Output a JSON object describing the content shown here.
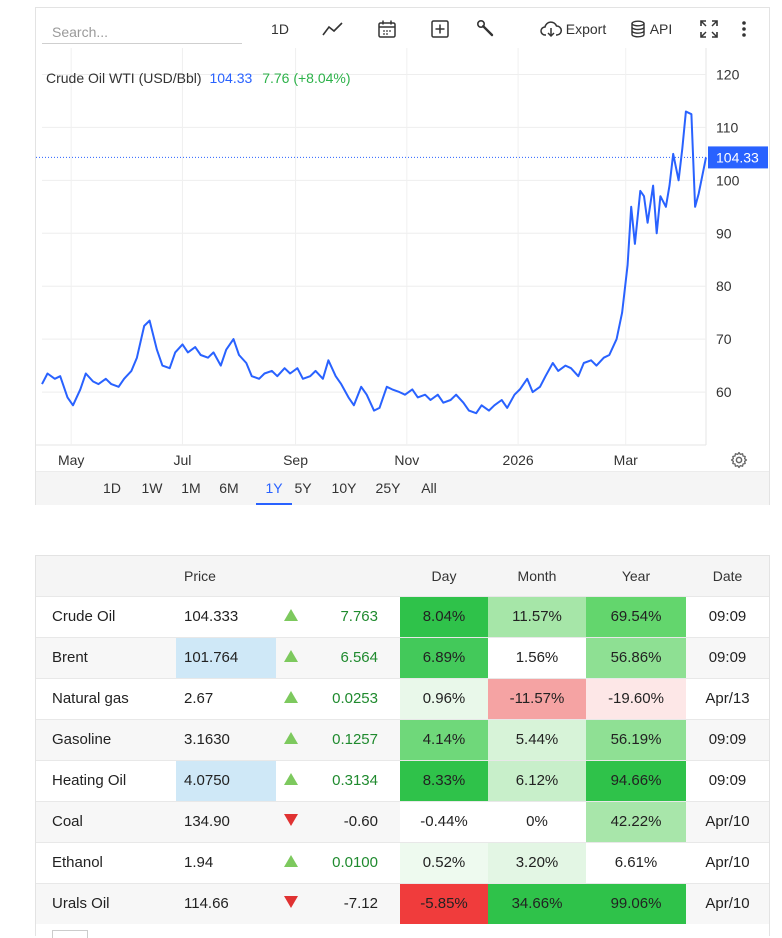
{
  "toolbar": {
    "search_placeholder": "Search...",
    "interval_label": "1D",
    "export_label": "Export",
    "api_label": "API",
    "icons": [
      "line-chart-icon",
      "calendar-icon",
      "add-compare-icon",
      "wrench-icon",
      "cloud-download-icon",
      "database-icon",
      "fullscreen-icon",
      "more-vertical-icon"
    ]
  },
  "legend": {
    "name": "Crude Oil WTI (USD/Bbl)",
    "price": "104.33",
    "change": "7.76 (+8.04%)"
  },
  "chart_data": {
    "type": "line",
    "title": "Crude Oil WTI (USD/Bbl)",
    "xlabel": "",
    "ylabel": "",
    "x_ticks": [
      "May",
      "Jul",
      "Sep",
      "Nov",
      "2026",
      "Mar"
    ],
    "y_ticks": [
      60,
      70,
      80,
      90,
      100,
      110,
      120
    ],
    "ylim": [
      50,
      125
    ],
    "grid": true,
    "current_price": 104.33,
    "current_price_label": "104.33",
    "line_color": "#2962ff",
    "x_range": [
      "2025-04-15",
      "2026-04-14"
    ],
    "series": [
      {
        "x": [
          "2025-04-15",
          "2025-04-18",
          "2025-04-22",
          "2025-04-25",
          "2025-04-29",
          "2025-05-02",
          "2025-05-06",
          "2025-05-09",
          "2025-05-13",
          "2025-05-16",
          "2025-05-20",
          "2025-05-23",
          "2025-05-27",
          "2025-05-30",
          "2025-06-03",
          "2025-06-06",
          "2025-06-10",
          "2025-06-13",
          "2025-06-17",
          "2025-06-20",
          "2025-06-24",
          "2025-06-27",
          "2025-07-01",
          "2025-07-04",
          "2025-07-08",
          "2025-07-11",
          "2025-07-15",
          "2025-07-18",
          "2025-07-22",
          "2025-07-25",
          "2025-07-29",
          "2025-08-01",
          "2025-08-05",
          "2025-08-08",
          "2025-08-12",
          "2025-08-15",
          "2025-08-19",
          "2025-08-22",
          "2025-08-26",
          "2025-08-29",
          "2025-09-02",
          "2025-09-05",
          "2025-09-09",
          "2025-09-12",
          "2025-09-16",
          "2025-09-19",
          "2025-09-23",
          "2025-09-26",
          "2025-09-30",
          "2025-10-03",
          "2025-10-07",
          "2025-10-10",
          "2025-10-14",
          "2025-10-17",
          "2025-10-21",
          "2025-10-24",
          "2025-10-28",
          "2025-10-31",
          "2025-11-04",
          "2025-11-07",
          "2025-11-11",
          "2025-11-14",
          "2025-11-18",
          "2025-11-21",
          "2025-11-25",
          "2025-11-28",
          "2025-12-02",
          "2025-12-05",
          "2025-12-09",
          "2025-12-12",
          "2025-12-16",
          "2025-12-19",
          "2025-12-23",
          "2025-12-26",
          "2025-12-30",
          "2026-01-02",
          "2026-01-06",
          "2026-01-09",
          "2026-01-13",
          "2026-01-16",
          "2026-01-20",
          "2026-01-23",
          "2026-01-27",
          "2026-01-30",
          "2026-02-03",
          "2026-02-06",
          "2026-02-10",
          "2026-02-13",
          "2026-02-17",
          "2026-02-20",
          "2026-02-24",
          "2026-02-27",
          "2026-03-02",
          "2026-03-04",
          "2026-03-06",
          "2026-03-09",
          "2026-03-11",
          "2026-03-13",
          "2026-03-16",
          "2026-03-18",
          "2026-03-20",
          "2026-03-23",
          "2026-03-25",
          "2026-03-27",
          "2026-03-30",
          "2026-04-01",
          "2026-04-03",
          "2026-04-06",
          "2026-04-08",
          "2026-04-10",
          "2026-04-14"
        ],
        "values": [
          61.5,
          63.5,
          62.5,
          63.0,
          59.0,
          57.5,
          60.5,
          63.5,
          62.0,
          61.5,
          62.5,
          61.5,
          61.0,
          62.5,
          64.0,
          66.5,
          72.5,
          73.5,
          68.0,
          65.0,
          64.5,
          67.5,
          69.0,
          67.5,
          68.5,
          67.0,
          66.5,
          67.5,
          65.0,
          68.0,
          70.0,
          67.0,
          65.5,
          63.0,
          62.5,
          63.5,
          64.0,
          63.0,
          64.5,
          63.5,
          64.5,
          62.5,
          63.0,
          64.0,
          62.5,
          66.0,
          63.0,
          61.5,
          59.0,
          57.5,
          61.0,
          59.5,
          56.5,
          57.0,
          61.0,
          60.5,
          60.0,
          59.5,
          60.5,
          59.0,
          59.5,
          58.5,
          59.5,
          58.0,
          58.5,
          59.5,
          58.0,
          56.5,
          56.0,
          57.5,
          56.5,
          57.5,
          58.5,
          57.0,
          59.5,
          60.5,
          62.5,
          60.0,
          61.0,
          63.0,
          65.5,
          64.0,
          65.0,
          64.5,
          63.0,
          65.5,
          66.0,
          65.0,
          66.5,
          67.0,
          70.0,
          75.0,
          84.0,
          95.0,
          88.0,
          98.0,
          97.0,
          92.0,
          99.0,
          90.0,
          97.0,
          95.0,
          99.0,
          105.0,
          100.0,
          106.0,
          113.0,
          112.5,
          95.0,
          97.5,
          104.33
        ]
      }
    ]
  },
  "range_buttons": [
    "1D",
    "1W",
    "1M",
    "6M",
    "1Y",
    "5Y",
    "10Y",
    "25Y",
    "All"
  ],
  "active_range": "1Y",
  "table": {
    "headers": [
      "",
      "Price",
      "",
      "",
      "Day",
      "Month",
      "Year",
      "Date"
    ],
    "rows": [
      {
        "name": "Crude Oil",
        "price": "104.333",
        "dir": "up",
        "change": "7.763",
        "day": "8.04%",
        "month": "11.57%",
        "year": "69.54%",
        "date": "09:09",
        "price_bg": "",
        "day_bg": "#2fc24a",
        "month_bg": "#a6e6a8",
        "year_bg": "#63d66d"
      },
      {
        "name": "Brent",
        "price": "101.764",
        "dir": "up",
        "change": "6.564",
        "day": "6.89%",
        "month": "1.56%",
        "year": "56.86%",
        "date": "09:09",
        "price_bg": "#cfe8f7",
        "day_bg": "#43c95a",
        "month_bg": "#ffffff",
        "year_bg": "#8ee093"
      },
      {
        "name": "Natural gas",
        "price": "2.67",
        "dir": "up",
        "change": "0.0253",
        "day": "0.96%",
        "month": "-11.57%",
        "year": "-19.60%",
        "date": "Apr/13",
        "price_bg": "",
        "day_bg": "#e9f8ea",
        "month_bg": "#f5a3a3",
        "year_bg": "#fde7e7"
      },
      {
        "name": "Gasoline",
        "price": "3.1630",
        "dir": "up",
        "change": "0.1257",
        "day": "4.14%",
        "month": "5.44%",
        "year": "56.19%",
        "date": "09:09",
        "price_bg": "",
        "day_bg": "#6fd87a",
        "month_bg": "#d7f3d8",
        "year_bg": "#8fe094"
      },
      {
        "name": "Heating Oil",
        "price": "4.0750",
        "dir": "up",
        "change": "0.3134",
        "day": "8.33%",
        "month": "6.12%",
        "year": "94.66%",
        "date": "09:09",
        "price_bg": "#cfe8f7",
        "day_bg": "#2fc24a",
        "month_bg": "#c8efca",
        "year_bg": "#2fc24a"
      },
      {
        "name": "Coal",
        "price": "134.90",
        "dir": "down",
        "change": "-0.60",
        "day": "-0.44%",
        "month": "0%",
        "year": "42.22%",
        "date": "Apr/10",
        "price_bg": "",
        "day_bg": "#ffffff",
        "month_bg": "#ffffff",
        "year_bg": "#a8e6aa"
      },
      {
        "name": "Ethanol",
        "price": "1.94",
        "dir": "up",
        "change": "0.0100",
        "day": "0.52%",
        "month": "3.20%",
        "year": "6.61%",
        "date": "Apr/10",
        "price_bg": "",
        "day_bg": "#eefaef",
        "month_bg": "#e3f6e4",
        "year_bg": "#ffffff"
      },
      {
        "name": "Urals Oil",
        "price": "114.66",
        "dir": "down",
        "change": "-7.12",
        "day": "-5.85%",
        "month": "34.66%",
        "year": "99.06%",
        "date": "Apr/10",
        "price_bg": "",
        "day_bg": "#f03c3c",
        "month_bg": "#2fc24a",
        "year_bg": "#2fc24a"
      }
    ]
  },
  "colors": {
    "accent": "#2962ff",
    "positive": "#2db24a",
    "up_arrow": "#7dc95e",
    "down_arrow": "#e03232"
  }
}
